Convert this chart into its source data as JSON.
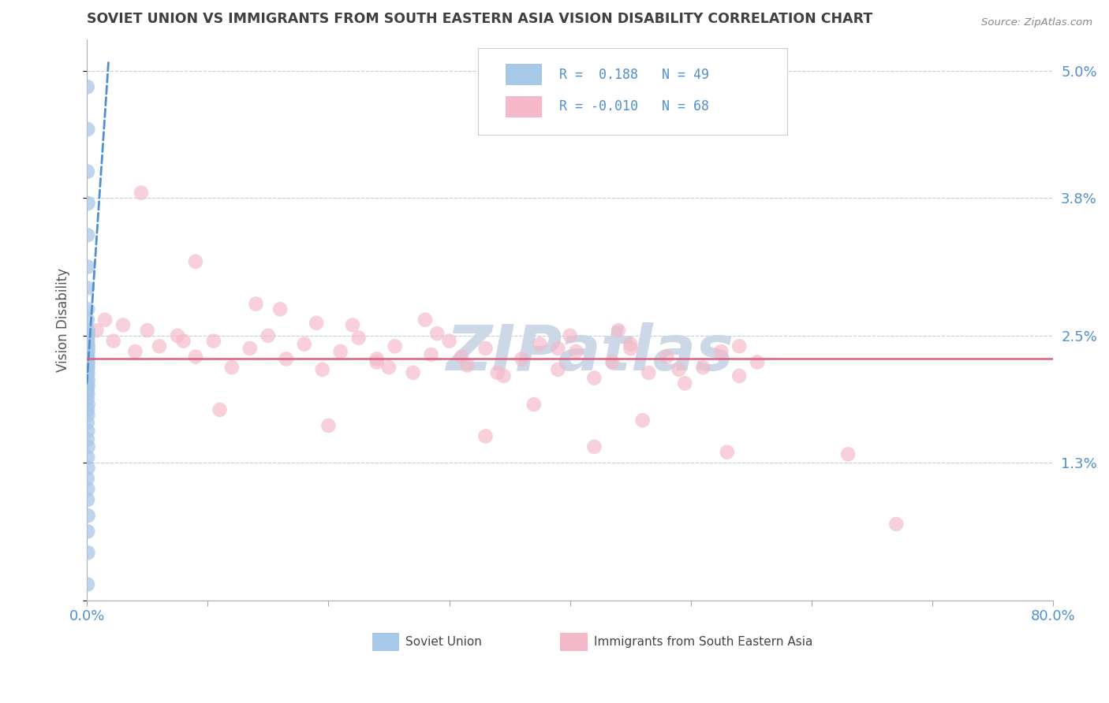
{
  "title": "SOVIET UNION VS IMMIGRANTS FROM SOUTH EASTERN ASIA VISION DISABILITY CORRELATION CHART",
  "source": "Source: ZipAtlas.com",
  "ylabel": "Vision Disability",
  "xlim": [
    0.0,
    80.0
  ],
  "ylim": [
    0.0,
    5.3
  ],
  "yticks": [
    0.0,
    1.3,
    2.5,
    3.8,
    5.0
  ],
  "ytick_labels": [
    "",
    "1.3%",
    "2.5%",
    "3.8%",
    "5.0%"
  ],
  "R_blue": 0.188,
  "N_blue": 49,
  "R_pink": -0.01,
  "N_pink": 68,
  "blue_color": "#a8c8e8",
  "pink_color": "#f5b8c8",
  "blue_line_color": "#5090d0",
  "pink_line_color": "#e06080",
  "title_color": "#404040",
  "watermark_color": "#ccd8e8",
  "background_color": "#ffffff",
  "blue_dots_x": [
    0.05,
    0.08,
    0.06,
    0.1,
    0.07,
    0.09,
    0.05,
    0.08,
    0.06,
    0.1,
    0.07,
    0.09,
    0.05,
    0.08,
    0.06,
    0.1,
    0.07,
    0.09,
    0.05,
    0.08,
    0.06,
    0.1,
    0.07,
    0.09,
    0.05,
    0.08,
    0.06,
    0.1,
    0.07,
    0.09,
    0.05,
    0.08,
    0.06,
    0.1,
    0.07,
    0.09,
    0.05,
    0.08,
    0.06,
    0.1,
    0.07,
    0.09,
    0.05,
    0.08,
    0.06,
    0.1,
    0.07,
    0.09,
    0.06
  ],
  "blue_dots_y": [
    4.85,
    4.45,
    4.05,
    3.75,
    3.45,
    3.15,
    2.95,
    2.75,
    2.65,
    2.55,
    2.52,
    2.5,
    2.48,
    2.45,
    2.42,
    2.4,
    2.38,
    2.35,
    2.32,
    2.3,
    2.27,
    2.25,
    2.22,
    2.2,
    2.17,
    2.15,
    2.12,
    2.08,
    2.05,
    2.02,
    1.98,
    1.95,
    1.9,
    1.85,
    1.8,
    1.75,
    1.68,
    1.6,
    1.52,
    1.45,
    1.35,
    1.25,
    1.15,
    1.05,
    0.95,
    0.8,
    0.65,
    0.45,
    0.15
  ],
  "pink_dots_x": [
    0.8,
    1.5,
    2.2,
    3.0,
    4.0,
    5.0,
    6.0,
    7.5,
    9.0,
    10.5,
    12.0,
    13.5,
    15.0,
    16.5,
    18.0,
    19.5,
    21.0,
    22.5,
    24.0,
    25.5,
    27.0,
    28.5,
    30.0,
    31.5,
    33.0,
    34.5,
    36.0,
    37.5,
    39.0,
    40.5,
    42.0,
    43.5,
    45.0,
    46.5,
    48.0,
    49.5,
    51.0,
    52.5,
    54.0,
    55.5,
    4.5,
    9.0,
    14.0,
    19.0,
    24.0,
    29.0,
    34.0,
    39.0,
    44.0,
    49.0,
    54.0,
    22.0,
    31.0,
    40.0,
    16.0,
    8.0,
    25.0,
    37.0,
    46.0,
    11.0,
    20.0,
    33.0,
    42.0,
    53.0,
    63.0,
    28.0,
    45.0,
    67.0
  ],
  "pink_dots_y": [
    2.55,
    2.65,
    2.45,
    2.6,
    2.35,
    2.55,
    2.4,
    2.5,
    2.3,
    2.45,
    2.2,
    2.38,
    2.5,
    2.28,
    2.42,
    2.18,
    2.35,
    2.48,
    2.25,
    2.4,
    2.15,
    2.32,
    2.45,
    2.22,
    2.38,
    2.12,
    2.28,
    2.42,
    2.18,
    2.35,
    2.1,
    2.25,
    2.38,
    2.15,
    2.3,
    2.05,
    2.2,
    2.35,
    2.12,
    2.25,
    3.85,
    3.2,
    2.8,
    2.62,
    2.28,
    2.52,
    2.15,
    2.38,
    2.55,
    2.18,
    2.4,
    2.6,
    2.3,
    2.5,
    2.75,
    2.45,
    2.2,
    1.85,
    1.7,
    1.8,
    1.65,
    1.55,
    1.45,
    1.4,
    1.38,
    2.65,
    2.42,
    0.72
  ],
  "blue_trendline_x0": 0.0,
  "blue_trendline_y0": 2.05,
  "blue_trendline_x1": 1.8,
  "blue_trendline_y1": 5.1,
  "pink_trendline_y": 2.28
}
